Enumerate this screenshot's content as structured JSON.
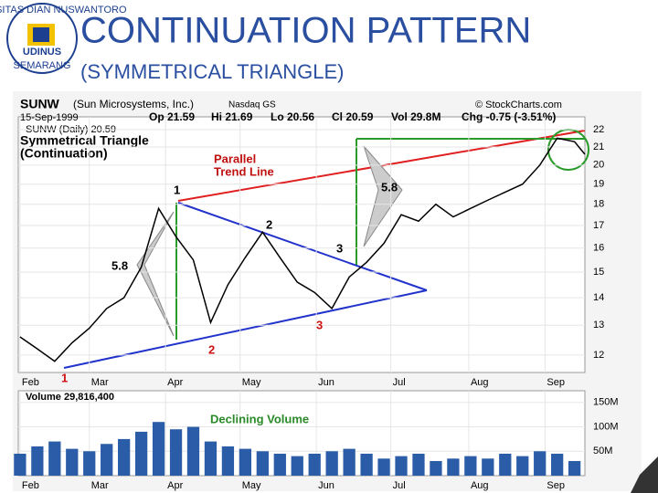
{
  "slide": {
    "title": "CONTINUATION PATTERN",
    "subtitle": "(SYMMETRICAL TRIANGLE)",
    "logo": {
      "name": "UDINUS",
      "ring_top": "UNIVERSITAS DIAN NUSWANTORO",
      "ring_bottom": "SEMARANG"
    }
  },
  "header": {
    "symbol": "SUNW",
    "company": "(Sun Microsystems, Inc.)",
    "exchange": "Nasdaq GS",
    "source": "© StockCharts.com",
    "date": "15-Sep-1999",
    "open": "Op 21.59",
    "high": "Hi 21.69",
    "low": "Lo 20.56",
    "close": "Cl 20.59",
    "volume": "Vol 29.8M",
    "change": "Chg -0.75 (-3.51%)",
    "legend": "SUNW (Daily) 20.59",
    "pattern": "Symmetrical Triangle",
    "pattern_type": "(Continuation)"
  },
  "annotations": [
    "Parallel",
    "Trend Line",
    "5.8",
    "5.8",
    "1",
    "2",
    "3",
    "1",
    "2",
    "3",
    "Declining Volume"
  ],
  "chart_data": [
    {
      "type": "line",
      "log_scale": true,
      "color": "#000000",
      "x": [
        0,
        1,
        2,
        3,
        4,
        5,
        6,
        7,
        8,
        9,
        10,
        11,
        12,
        13,
        14,
        15,
        16,
        17,
        18,
        19,
        20,
        21,
        22,
        23,
        24,
        25,
        26,
        27,
        28,
        29,
        30,
        31,
        32,
        32.6
      ],
      "values": [
        12.6,
        12.2,
        11.8,
        12.4,
        12.9,
        13.6,
        14.0,
        15.2,
        17.8,
        16.5,
        15.5,
        13.1,
        14.5,
        15.6,
        16.7,
        15.6,
        14.6,
        14.2,
        13.6,
        14.8,
        15.4,
        16.2,
        17.5,
        17.2,
        18.0,
        17.4,
        17.8,
        18.2,
        18.6,
        19.0,
        20.0,
        21.5,
        21.3,
        20.59
      ],
      "xlim": [
        -0.1,
        32.6
      ],
      "ylim": [
        11.45,
        22.77
      ],
      "xticks": [
        {
          "value": 0,
          "label": "Feb"
        },
        {
          "value": 4,
          "label": "Mar"
        },
        {
          "value": 8.4,
          "label": "Apr"
        },
        {
          "value": 12.7,
          "label": "May"
        },
        {
          "value": 17.1,
          "label": "Jun"
        },
        {
          "value": 21.4,
          "label": "Jul"
        },
        {
          "value": 25.9,
          "label": "Aug"
        },
        {
          "value": 30.3,
          "label": "Sep"
        }
      ],
      "yticks": [
        12,
        13,
        14,
        15,
        16,
        17,
        18,
        19,
        20,
        21,
        22
      ],
      "grid": true
    },
    {
      "type": "bar",
      "title": "Volume 29,816,400",
      "color": "#2a5ca8",
      "x": [
        0,
        1,
        2,
        3,
        4,
        5,
        6,
        7,
        8,
        9,
        10,
        11,
        12,
        13,
        14,
        15,
        16,
        17,
        18,
        19,
        20,
        21,
        22,
        23,
        24,
        25,
        26,
        27,
        28,
        29,
        30,
        31,
        32
      ],
      "values": [
        45,
        60,
        70,
        55,
        50,
        65,
        75,
        90,
        110,
        95,
        100,
        70,
        60,
        55,
        50,
        45,
        40,
        45,
        50,
        55,
        45,
        35,
        40,
        45,
        30,
        35,
        40,
        35,
        45,
        40,
        50,
        45,
        30
      ],
      "xlim": [
        -0.1,
        32.6
      ],
      "ylim": [
        0,
        174
      ],
      "xticks": [
        {
          "value": 0,
          "label": "Feb"
        },
        {
          "value": 4,
          "label": "Mar"
        },
        {
          "value": 8.4,
          "label": "Apr"
        },
        {
          "value": 12.7,
          "label": "May"
        },
        {
          "value": 17.1,
          "label": "Jun"
        },
        {
          "value": 21.4,
          "label": "Jul"
        },
        {
          "value": 25.9,
          "label": "Aug"
        },
        {
          "value": 30.3,
          "label": "Sep"
        }
      ],
      "yticks": [
        {
          "value": 50,
          "label": "50M"
        },
        {
          "value": 100,
          "label": "100M"
        },
        {
          "value": 150,
          "label": "150M"
        }
      ],
      "grid": true
    }
  ]
}
